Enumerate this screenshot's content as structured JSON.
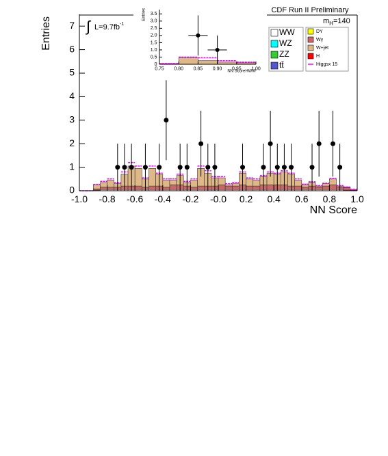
{
  "chart_data": [
    {
      "type": "histogram",
      "ylabel": "Entries",
      "xlabel": "NN Score",
      "experiment": "CDF Run II Preliminary",
      "mass": {
        "symbol": "m",
        "subscript": "H",
        "text": "=140"
      },
      "lumi": {
        "integral": "∫",
        "text": "L=9.7fb",
        "superscript": "-1"
      },
      "bins": [
        -1.0,
        -0.95,
        -0.9,
        -0.85,
        -0.8,
        -0.75,
        -0.7,
        -0.65,
        -0.6,
        -0.55,
        -0.5,
        -0.45,
        -0.4,
        -0.35,
        -0.3,
        -0.25,
        -0.2,
        -0.15,
        -0.1,
        -0.05,
        0,
        0.05,
        0.1,
        0.15,
        0.2,
        0.25,
        0.3,
        0.35,
        0.4,
        0.45,
        0.5,
        0.55,
        0.6,
        0.65,
        0.7,
        0.75,
        0.8,
        0.85,
        0.9,
        0.95,
        1.0
      ],
      "xlim": [
        -1,
        1
      ],
      "ylim": [
        0,
        7.5
      ],
      "xticks": [
        {
          "value": -1,
          "label": "-1.0"
        },
        -0.8,
        -0.6,
        -0.4,
        -0.2,
        {
          "value": 0,
          "label": "-0.0"
        },
        0.2,
        0.4,
        0.6,
        0.8,
        {
          "value": 1,
          "label": "1.0"
        }
      ],
      "yticks": [
        0,
        1,
        2,
        3,
        4,
        5,
        6,
        7
      ],
      "series": [
        {
          "name": "WW",
          "color": "#ffffff",
          "values": [
            0,
            0,
            0.03,
            0.05,
            0.05,
            0.05,
            0.05,
            0.05,
            0.05,
            0.05,
            0.05,
            0.05,
            0.05,
            0.05,
            0.05,
            0.05,
            0.05,
            0.05,
            0.05,
            0.05,
            0.05,
            0.05,
            0.05,
            0.05,
            0.05,
            0.05,
            0.05,
            0.05,
            0.05,
            0.05,
            0.05,
            0.05,
            0.05,
            0.05,
            0.05,
            0.05,
            0.05,
            0.05,
            0.03,
            0.02
          ]
        },
        {
          "name": "WZ",
          "color": "#00ffff",
          "values": [
            0,
            0,
            0,
            0,
            0,
            0,
            0,
            0,
            0,
            0,
            0,
            0,
            0,
            0,
            0,
            0,
            0,
            0,
            0,
            0,
            0,
            0,
            0,
            0,
            0,
            0,
            0,
            0,
            0,
            0,
            0,
            0,
            0,
            0,
            0,
            0,
            0,
            0,
            0,
            0
          ]
        },
        {
          "name": "ZZ",
          "color": "#33cc33",
          "values": [
            0,
            0,
            0,
            0,
            0,
            0,
            0,
            0,
            0,
            0,
            0,
            0,
            0,
            0,
            0,
            0,
            0,
            0,
            0,
            0,
            0,
            0,
            0,
            0,
            0,
            0,
            0,
            0,
            0,
            0,
            0,
            0,
            0,
            0,
            0,
            0,
            0,
            0,
            0,
            0
          ]
        },
        {
          "name": "tt̄",
          "color": "#5555cc",
          "values": [
            0,
            0,
            0,
            0,
            0,
            0,
            0,
            0,
            0,
            0,
            0,
            0,
            0,
            0,
            0,
            0,
            0,
            0,
            0,
            0,
            0,
            0,
            0,
            0,
            0,
            0,
            0,
            0,
            0,
            0,
            0,
            0,
            0,
            0,
            0,
            0,
            0,
            0,
            0,
            0
          ]
        },
        {
          "name": "DY",
          "color": "#ffff00",
          "values": [
            0,
            0,
            0,
            0,
            0,
            0,
            0,
            0,
            0,
            0,
            0,
            0,
            0,
            0,
            0,
            0,
            0,
            0,
            0,
            0,
            0,
            0,
            0,
            0,
            0,
            0,
            0,
            0,
            0,
            0,
            0,
            0,
            0,
            0,
            0,
            0,
            0,
            0,
            0,
            0
          ]
        },
        {
          "name": "Wγ",
          "color": "#cc6666",
          "values": [
            0,
            0,
            0.05,
            0.1,
            0.1,
            0.1,
            0.15,
            0.15,
            0.15,
            0.1,
            0.15,
            0.15,
            0.1,
            0.2,
            0.2,
            0.15,
            0.1,
            0.15,
            0.15,
            0.15,
            0.2,
            0.15,
            0.15,
            0.2,
            0.15,
            0.15,
            0.2,
            0.2,
            0.2,
            0.2,
            0.15,
            0.15,
            0.1,
            0.15,
            0.1,
            0.15,
            0.2,
            0.1,
            0.1,
            0.03
          ]
        },
        {
          "name": "W+jet",
          "color": "#deb887",
          "values": [
            0,
            0,
            0.17,
            0.2,
            0.3,
            0.15,
            0.5,
            0.85,
            0.75,
            0.35,
            0.75,
            0.5,
            0.3,
            0.2,
            0.4,
            0.15,
            0.3,
            0.75,
            0.55,
            0.35,
            0.3,
            0.05,
            0.1,
            0.5,
            0.3,
            0.25,
            0.35,
            0.5,
            0.45,
            0.55,
            0.5,
            0.25,
            0.1,
            0.15,
            0.05,
            0.1,
            0.25,
            0.05,
            0.02,
            0
          ]
        },
        {
          "name": "H",
          "color": "#ff0000",
          "values": [
            0,
            0,
            0,
            0,
            0,
            0,
            0,
            0,
            0,
            0,
            0,
            0,
            0,
            0,
            0,
            0,
            0,
            0,
            0,
            0,
            0,
            0,
            0,
            0,
            0,
            0,
            0,
            0,
            0,
            0,
            0,
            0,
            0,
            0,
            0,
            0,
            0,
            0,
            0,
            0
          ]
        }
      ],
      "signal": {
        "name": "Higgsx 15",
        "color": "#ff00ff",
        "values": [
          0,
          0,
          0.02,
          0.05,
          0.05,
          0.05,
          0.1,
          0.15,
          0.1,
          0.05,
          0.1,
          0.05,
          0.05,
          0.05,
          0.05,
          0.05,
          0.05,
          0.1,
          0.1,
          0.05,
          0.05,
          0.05,
          0.05,
          0.05,
          0.05,
          0.05,
          0.05,
          0.05,
          0.05,
          0.05,
          0.05,
          0.05,
          0.03,
          0.03,
          0.02,
          0.02,
          0.02,
          0.02,
          0.01,
          0.01
        ]
      },
      "points": {
        "x": [
          -0.725,
          -0.675,
          -0.625,
          -0.525,
          -0.425,
          -0.375,
          -0.275,
          -0.225,
          -0.125,
          -0.075,
          -0.025,
          0.175,
          0.325,
          0.375,
          0.425,
          0.475,
          0.525,
          0.675,
          0.725,
          0.825,
          0.875
        ],
        "values": [
          1,
          1,
          1,
          1,
          1,
          3,
          1,
          1,
          2,
          1,
          1,
          1,
          1,
          2,
          1,
          1,
          1,
          1,
          2,
          2,
          1
        ],
        "errors": [
          1,
          1,
          1,
          1,
          1,
          1.7,
          1,
          1,
          1.4,
          1,
          1,
          1,
          1,
          1.4,
          1,
          1,
          1,
          1,
          1.4,
          1.4,
          1
        ]
      }
    },
    {
      "type": "histogram",
      "ylabel": "Entries",
      "xlabel": "NN ScoreHWW",
      "bins": [
        0.75,
        0.8,
        0.85,
        0.9,
        0.95,
        1.0
      ],
      "xlim": [
        0.75,
        1.0
      ],
      "ylim": [
        0,
        3.8
      ],
      "xticks": [
        0.75,
        {
          "value": 0.8,
          "label": "0.80"
        },
        0.85,
        {
          "value": 0.9,
          "label": "0.90"
        },
        0.95,
        {
          "value": 1,
          "label": "1.00"
        }
      ],
      "yticks": [
        0,
        0.5,
        {
          "value": 1,
          "label": "1.0"
        },
        1.5,
        {
          "value": 2,
          "label": "2.0"
        },
        2.5,
        {
          "value": 3,
          "label": "3.0"
        },
        3.5
      ],
      "series": [
        {
          "color": "#deb887",
          "values": [
            0.05,
            0.45,
            0.25,
            0.15,
            0.1
          ]
        }
      ],
      "signal": {
        "color": "#ff00ff",
        "values": [
          0,
          0.05,
          0.2,
          0.1,
          0.05
        ]
      },
      "points": {
        "x": [
          0.85,
          0.9
        ],
        "values": [
          2,
          1
        ],
        "errors": [
          1.4,
          1
        ],
        "xerrors": [
          0.025,
          0.025
        ]
      }
    }
  ]
}
